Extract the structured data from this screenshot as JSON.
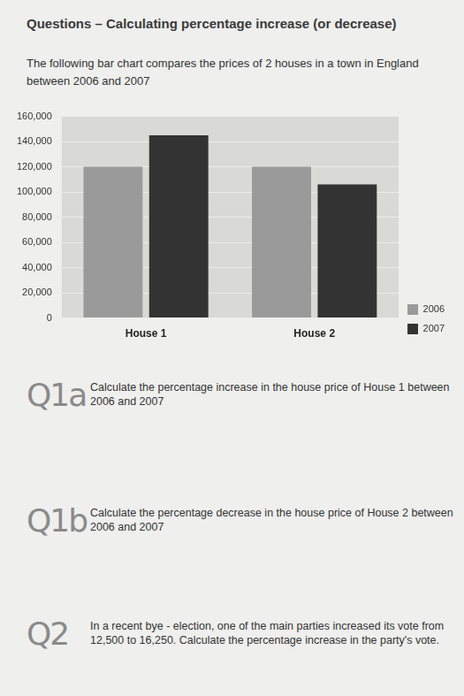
{
  "title": "Questions – Calculating percentage increase (or decrease)",
  "intro": "The following bar chart compares the prices of 2 houses in a town in England between 2006 and 2007",
  "chart_data": {
    "type": "bar",
    "categories": [
      "House 1",
      "House 2"
    ],
    "series": [
      {
        "name": "2006",
        "color": "#9a9a9a",
        "values": [
          120000,
          120000
        ]
      },
      {
        "name": "2007",
        "color": "#333333",
        "values": [
          145000,
          106000
        ]
      }
    ],
    "ylim": [
      0,
      160000
    ],
    "yticks": [
      0,
      {
        "value": 20000,
        "label": "20,000"
      },
      {
        "value": 40000,
        "label": "40,000"
      },
      {
        "value": 60000,
        "label": "60,000"
      },
      {
        "value": 80000,
        "label": "80,000"
      },
      {
        "value": 100000,
        "label": "100,000"
      },
      {
        "value": 120000,
        "label": "120,000"
      },
      {
        "value": 140000,
        "label": "140,000"
      },
      {
        "value": 160000,
        "label": "160,000"
      }
    ],
    "grid": true,
    "legend": "right"
  },
  "questions": [
    {
      "number": "Q1a",
      "text": "Calculate the percentage increase in the house price of House 1 between 2006 and 2007"
    },
    {
      "number": "Q1b",
      "text": "Calculate the percentage decrease in the house price of House 2 between 2006 and 2007"
    },
    {
      "number": "Q2",
      "text": "In a recent bye - election, one of the main parties increased its vote from 12,500 to 16,250. Calculate the percentage increase in the party's vote."
    }
  ]
}
